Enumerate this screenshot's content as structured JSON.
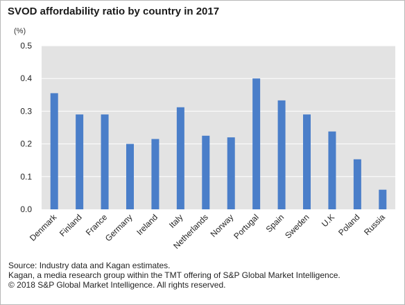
{
  "title": "SVOD affordability ratio by country in 2017",
  "unit": "(%)",
  "chart_data": {
    "type": "bar",
    "title": "SVOD affordability ratio by country in 2017",
    "ylabel": "(%)",
    "xlabel": "",
    "ylim": [
      0,
      0.5
    ],
    "yticks": [
      "0.0",
      "0.1",
      "0.2",
      "0.3",
      "0.4",
      "0.5"
    ],
    "grid": true,
    "categories": [
      "Denmark",
      "Finland",
      "France",
      "Germany",
      "Ireland",
      "Italy",
      "Netherlands",
      "Norway",
      "Portugal",
      "Spain",
      "Sweden",
      "U.K",
      "Poland",
      "Russia"
    ],
    "values": [
      0.355,
      0.29,
      0.29,
      0.2,
      0.215,
      0.312,
      0.225,
      0.22,
      0.4,
      0.333,
      0.29,
      0.238,
      0.153,
      0.06
    ],
    "bar_color": "#4a7ec9",
    "plot_background": "#e3e3e3"
  },
  "footer": {
    "source": "Source: Industry data and Kagan estimates.",
    "note": "Kagan, a media research group within the TMT offering of S&P Global Market Intelligence.",
    "copyright": "© 2018 S&P Global Market Intelligence. All rights reserved."
  }
}
